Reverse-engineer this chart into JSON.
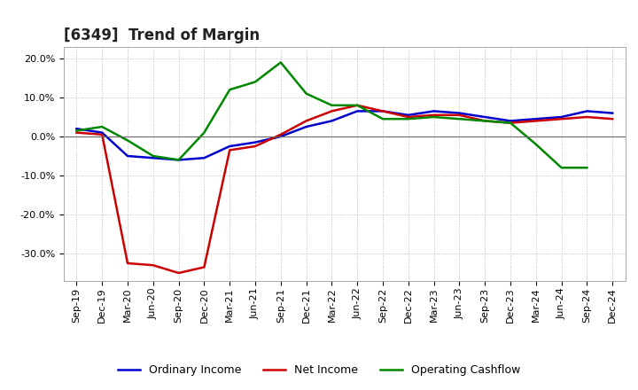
{
  "title": "[6349]  Trend of Margin",
  "x_labels": [
    "Sep-19",
    "Dec-19",
    "Mar-20",
    "Jun-20",
    "Sep-20",
    "Dec-20",
    "Mar-21",
    "Jun-21",
    "Sep-21",
    "Dec-21",
    "Mar-22",
    "Jun-22",
    "Sep-22",
    "Dec-22",
    "Mar-23",
    "Jun-23",
    "Sep-23",
    "Dec-23",
    "Mar-24",
    "Jun-24",
    "Sep-24",
    "Dec-24"
  ],
  "ordinary_income": [
    2.0,
    1.0,
    -5.0,
    -5.5,
    -6.0,
    -5.5,
    -2.5,
    -1.5,
    0.0,
    2.5,
    4.0,
    6.5,
    6.5,
    5.5,
    6.5,
    6.0,
    5.0,
    4.0,
    4.5,
    5.0,
    6.5,
    6.0
  ],
  "net_income": [
    1.0,
    0.5,
    -32.5,
    -33.0,
    -35.0,
    -33.5,
    -3.5,
    -2.5,
    0.5,
    4.0,
    6.5,
    8.0,
    6.5,
    5.0,
    5.5,
    5.5,
    4.0,
    3.5,
    4.0,
    4.5,
    5.0,
    4.5
  ],
  "operating_cashflow": [
    1.5,
    2.5,
    -1.0,
    -5.0,
    -6.0,
    1.0,
    12.0,
    14.0,
    19.0,
    11.0,
    8.0,
    8.0,
    4.5,
    4.5,
    5.0,
    4.5,
    4.0,
    3.5,
    -2.0,
    -8.0,
    -8.0,
    null
  ],
  "ylim": [
    -37,
    23
  ],
  "yticks": [
    -30.0,
    -20.0,
    -10.0,
    0.0,
    10.0,
    20.0
  ],
  "ordinary_income_color": "#0000cc",
  "net_income_color": "#cc0000",
  "operating_cashflow_color": "#008800",
  "bg_color": "#ffffff",
  "grid_color": "#bbbbbb",
  "title_fontsize": 12,
  "tick_fontsize": 8,
  "legend_fontsize": 9
}
